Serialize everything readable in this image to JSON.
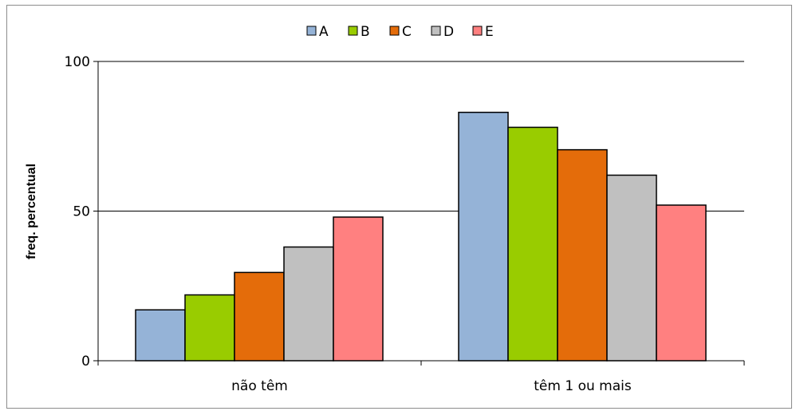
{
  "chart_data": {
    "type": "bar",
    "categories": [
      "não têm",
      "têm 1 ou mais"
    ],
    "series": [
      {
        "name": "A",
        "values": [
          17,
          83
        ],
        "color": "#95B3D7"
      },
      {
        "name": "B",
        "values": [
          22,
          78
        ],
        "color": "#99CC00"
      },
      {
        "name": "C",
        "values": [
          29.5,
          70.5
        ],
        "color": "#E46C0A"
      },
      {
        "name": "D",
        "values": [
          38,
          62
        ],
        "color": "#C0C0C0"
      },
      {
        "name": "E",
        "values": [
          48,
          52
        ],
        "color": "#FF8080"
      }
    ],
    "ylabel": "freq. percentual",
    "ylim": [
      0,
      100
    ],
    "yticks": [
      0,
      50,
      100
    ],
    "grid": true,
    "legend": "top"
  }
}
